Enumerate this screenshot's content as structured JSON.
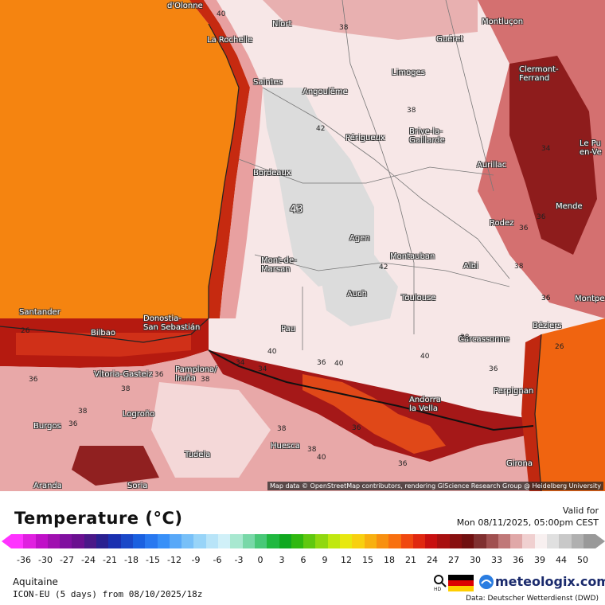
{
  "map": {
    "cities": [
      {
        "name": "d'Olonne"
      },
      {
        "name": "La Rochelle"
      },
      {
        "name": "Niort"
      },
      {
        "name": "Guéret"
      },
      {
        "name": "Montluçon"
      },
      {
        "name": "Saintes"
      },
      {
        "name": "Angoulême"
      },
      {
        "name": "Limoges"
      },
      {
        "name": "Clermont-\nFerrand"
      },
      {
        "name": "Brive-la-\nGaillarde"
      },
      {
        "name": "Périgueux"
      },
      {
        "name": "Bordeaux"
      },
      {
        "name": "Aurillac"
      },
      {
        "name": "Le Pu\nen-Ve"
      },
      {
        "name": "Agen"
      },
      {
        "name": "Rodez"
      },
      {
        "name": "Mende"
      },
      {
        "name": "Mont-de-\nMarsan"
      },
      {
        "name": "Montauban"
      },
      {
        "name": "Albi"
      },
      {
        "name": "Auch"
      },
      {
        "name": "Toulouse"
      },
      {
        "name": "Montpe"
      },
      {
        "name": "Santander"
      },
      {
        "name": "Donostia-\nSan Sebastián"
      },
      {
        "name": "Bilbao"
      },
      {
        "name": "Pau"
      },
      {
        "name": "Béziers"
      },
      {
        "name": "Carcassonne"
      },
      {
        "name": "Vitoria-Gasteiz"
      },
      {
        "name": "Pamplona/\nIruña"
      },
      {
        "name": "Perpignan"
      },
      {
        "name": "Andorra\nla Vella"
      },
      {
        "name": "Logroño"
      },
      {
        "name": "Burgos"
      },
      {
        "name": "Huesca"
      },
      {
        "name": "Tudela"
      },
      {
        "name": "Girona"
      },
      {
        "name": "Aranda"
      },
      {
        "name": "Soria"
      }
    ],
    "isolabels": [
      "40",
      "38",
      "42",
      "43",
      "38",
      "34",
      "36",
      "36",
      "38",
      "42",
      "36",
      "36",
      "40",
      "36",
      "40",
      "26",
      "38",
      "38",
      "38",
      "36",
      "36",
      "34",
      "38",
      "36",
      "36",
      "38",
      "40",
      "36",
      "40",
      "26",
      "38",
      "36",
      "34"
    ],
    "attribution": "Map data © OpenStreetMap contributors, rendering GIScience Research Group @ Heidelberg University"
  },
  "legend": {
    "title": "Temperature (°C)",
    "valid_label": "Valid for",
    "valid_time": "Mon 08/11/2025, 05:00pm CEST",
    "ticks": [
      "-36",
      "-30",
      "-27",
      "-24",
      "-21",
      "-18",
      "-15",
      "-12",
      "-9",
      "-6",
      "-3",
      "0",
      "3",
      "6",
      "9",
      "12",
      "15",
      "18",
      "21",
      "24",
      "27",
      "30",
      "33",
      "36",
      "39",
      "44",
      "50"
    ],
    "colors": [
      "#ff33ff",
      "#e020e0",
      "#c010c8",
      "#a010b0",
      "#8010a0",
      "#6a1090",
      "#4a1888",
      "#2a2090",
      "#1a30b0",
      "#1a48c8",
      "#1a60e0",
      "#2878f0",
      "#3890f8",
      "#58a8f8",
      "#78c0f8",
      "#98d4f8",
      "#b8e4f8",
      "#d0f0f8",
      "#a8e8d0",
      "#78d8a8",
      "#48c878",
      "#20b840",
      "#10a820",
      "#30b810",
      "#60c810",
      "#90d810",
      "#c0e810",
      "#e8e810",
      "#f8d010",
      "#f8b010",
      "#f89010",
      "#f87010",
      "#f04810",
      "#e02810",
      "#c81010",
      "#a81010",
      "#881010",
      "#701010",
      "#803030",
      "#a05050",
      "#c07878",
      "#e0a8a8",
      "#f0d0d0",
      "#f8f0f0",
      "#e0e0e0",
      "#c8c8c8",
      "#b0b0b0",
      "#999999"
    ],
    "arrow_left_color": "#ff33ff",
    "arrow_right_color": "#999999",
    "region": "Aquitaine",
    "model": "ICON-EU (5 days) from 08/10/2025/18z",
    "brand": "meteologix.com",
    "source": "Data: Deutscher Wetterdienst (DWD)"
  }
}
